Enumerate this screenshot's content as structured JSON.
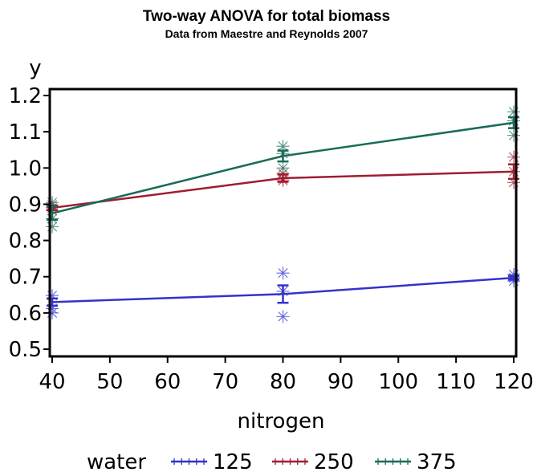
{
  "chart_data": {
    "type": "line",
    "title": "Two-way ANOVA for total biomass",
    "subtitle": "Data from Maestre and Reynolds 2007",
    "xlabel": "nitrogen",
    "ylabel": "y",
    "xlim": [
      40,
      120
    ],
    "ylim": [
      0.5,
      1.2
    ],
    "x_ticks": [
      "40",
      "50",
      "60",
      "70",
      "80",
      "90",
      "100",
      "110",
      "120"
    ],
    "y_ticks": [
      "0.5",
      "0.6",
      "0.7",
      "0.8",
      "0.9",
      "1.0",
      "1.1",
      "1.2"
    ],
    "x": [
      40,
      80,
      120
    ],
    "grid": false,
    "legend": {
      "title": "water",
      "position": "bottom"
    },
    "series": [
      {
        "name": "125",
        "color": "#3333cc",
        "means": [
          0.63,
          0.652,
          0.697
        ],
        "err_low": [
          0.62,
          0.628,
          0.692
        ],
        "err_high": [
          0.64,
          0.676,
          0.702
        ],
        "observations": [
          [
            0.6,
            0.612,
            0.648
          ],
          [
            0.59,
            0.71,
            0.66
          ],
          [
            0.688,
            0.697,
            0.706
          ]
        ]
      },
      {
        "name": "250",
        "color": "#a01c30",
        "means": [
          0.89,
          0.972,
          0.99
        ],
        "err_low": [
          0.884,
          0.962,
          0.97
        ],
        "err_high": [
          0.896,
          0.982,
          1.01
        ],
        "observations": [
          [
            0.882,
            0.89,
            0.898
          ],
          [
            0.965,
            0.985,
            0.97
          ],
          [
            0.96,
            0.99,
            1.03
          ]
        ]
      },
      {
        "name": "375",
        "color": "#1a6b5a",
        "means": [
          0.875,
          1.033,
          1.125
        ],
        "err_low": [
          0.857,
          1.018,
          1.11
        ],
        "err_high": [
          0.893,
          1.048,
          1.14
        ],
        "observations": [
          [
            0.838,
            0.86,
            0.905
          ],
          [
            1.0,
            1.04,
            1.06
          ],
          [
            1.09,
            1.13,
            1.155
          ]
        ]
      }
    ]
  }
}
